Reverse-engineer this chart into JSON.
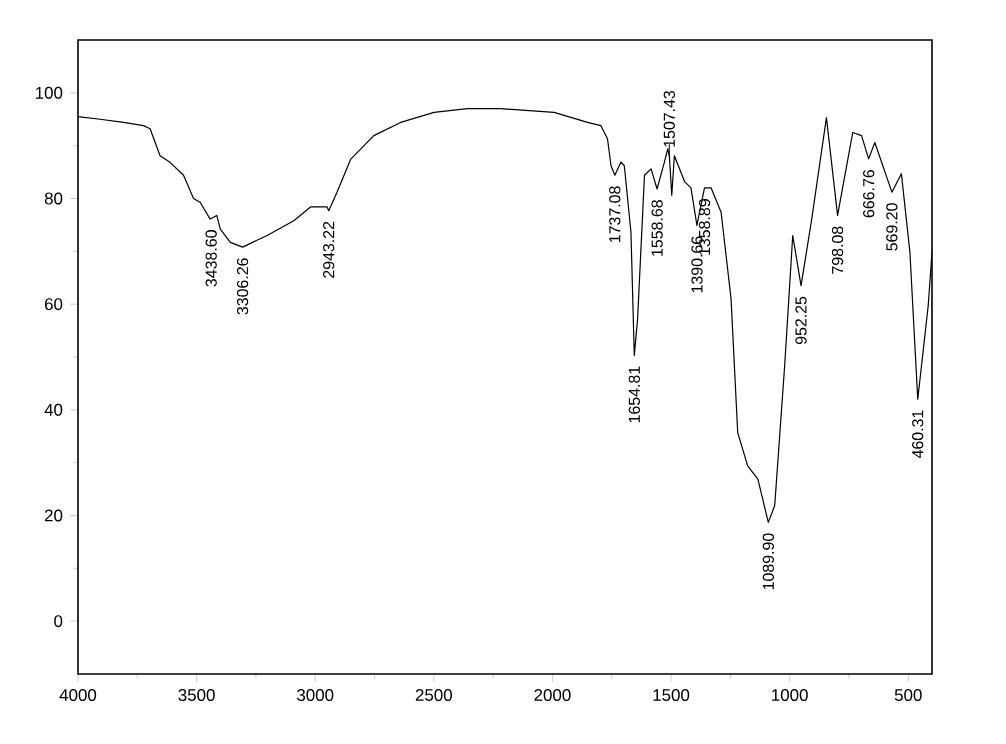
{
  "chart_data": {
    "type": "line",
    "xlim": [
      4000,
      400
    ],
    "ylim": [
      -10,
      110
    ],
    "xticks": [
      4000,
      3500,
      3000,
      2500,
      2000,
      1500,
      1000,
      500
    ],
    "yticks": [
      0,
      20,
      40,
      60,
      80,
      100
    ],
    "grid": false,
    "marker": "none",
    "line_style": "solid",
    "series": [
      {
        "color": "#000000",
        "x": [
          4000,
          3907,
          3808,
          3724,
          3696,
          3654,
          3611,
          3555,
          3513,
          3485,
          3443,
          3415,
          3400,
          3358,
          3306,
          3203,
          3090,
          3020,
          2950,
          2943,
          2908,
          2851,
          2753,
          2640,
          2499,
          2358,
          2218,
          1993,
          1852,
          1796,
          1768,
          1753,
          1737,
          1711,
          1697,
          1669,
          1655,
          1641,
          1612,
          1584,
          1559,
          1528,
          1514,
          1507,
          1497,
          1486,
          1443,
          1416,
          1391,
          1359,
          1331,
          1289,
          1247,
          1219,
          1177,
          1134,
          1090,
          1063,
          1021,
          987,
          952,
          907,
          845,
          798,
          734,
          697,
          667,
          641,
          569,
          529,
          493,
          460,
          416,
          400
        ],
        "values": [
          95.5,
          95,
          94.4,
          93.8,
          93.2,
          88.1,
          86.8,
          84.4,
          80,
          79.3,
          76.1,
          76.8,
          74.2,
          71.7,
          70.8,
          73,
          75.8,
          78.4,
          78.4,
          77.7,
          81.2,
          87.4,
          91.9,
          94.4,
          96.3,
          97,
          97,
          96.3,
          94.4,
          93.8,
          91.3,
          86.2,
          84.4,
          86.9,
          86.2,
          73.6,
          50.3,
          57.2,
          84.4,
          85.6,
          81.8,
          86.9,
          89.4,
          88,
          80.6,
          88.1,
          83.2,
          82,
          74.9,
          82,
          82,
          77.4,
          61,
          35.7,
          29.4,
          26.9,
          18.7,
          21.9,
          48.4,
          73,
          63.5,
          76.1,
          95.3,
          76.8,
          92.5,
          91.9,
          87.5,
          90.6,
          81.2,
          84.7,
          69.8,
          42,
          59.7,
          69.8
        ]
      }
    ],
    "annotations": [
      {
        "text": "3438.60",
        "x": 3438.6,
        "y": 76.1
      },
      {
        "text": "3306.26",
        "x": 3306.26,
        "y": 70.8
      },
      {
        "text": "2943.22",
        "x": 2943.22,
        "y": 77.7
      },
      {
        "text": "1737.08",
        "x": 1737.08,
        "y": 84.4
      },
      {
        "text": "1654.81",
        "x": 1654.81,
        "y": 50.3
      },
      {
        "text": "1558.68",
        "x": 1558.68,
        "y": 81.8
      },
      {
        "text": "1507.43",
        "x": 1507.43,
        "y": 88
      },
      {
        "text": "1390.66",
        "x": 1390.66,
        "y": 74.9
      },
      {
        "text": "1358.89",
        "x": 1358.89,
        "y": 82
      },
      {
        "text": "1089.90",
        "x": 1089.9,
        "y": 18.7
      },
      {
        "text": "952.25",
        "x": 952.25,
        "y": 63.5
      },
      {
        "text": "798.08",
        "x": 798.08,
        "y": 76.8
      },
      {
        "text": "666.76",
        "x": 666.76,
        "y": 87.5
      },
      {
        "text": "569.20",
        "x": 569.2,
        "y": 81.2
      },
      {
        "text": "460.31",
        "x": 460.31,
        "y": 42
      }
    ]
  }
}
